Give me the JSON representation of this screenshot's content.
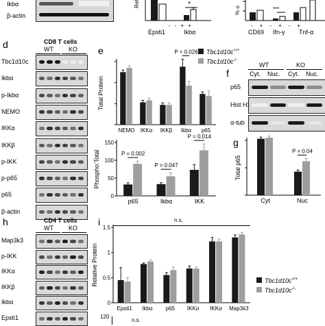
{
  "top": {
    "blot_labels": [
      "Ikbα",
      "β-actin"
    ],
    "ylabel_rel": "Rel",
    "xlabels_left": [
      "Epsti1",
      "Ikbα"
    ],
    "signs_left": [
      "-",
      "-",
      "+",
      "+"
    ],
    "star_left": "*",
    "ylabel_pct": "% o",
    "star_right": "***",
    "xlabels_right": [
      "CD69",
      "Ifn-γ",
      "Tnf-α"
    ],
    "signs_right": [
      "-",
      "+",
      "-",
      "+",
      "-",
      "+"
    ]
  },
  "panel_d": {
    "letter": "d",
    "title": "CD8 T cells",
    "wt": "WT",
    "ko": "KO",
    "rows": [
      "Tbc1d10c",
      "Ikbα",
      "p-Ikbα",
      "NEMO",
      "IKKα",
      "IKKβ",
      "p-IKK",
      "p-p65",
      "p65",
      "β-actin"
    ]
  },
  "panel_e": {
    "letter": "e",
    "legend": [
      "Tbc1d10c+/+",
      "Tbc1d10c-/-"
    ],
    "legend_gene": "Tbc1d10c",
    "legend_sup": [
      "+/+",
      "-/-"
    ],
    "colors": {
      "wt": "#1a1a1a",
      "ko": "#9e9e9e"
    }
  },
  "panel_f": {
    "letter": "f",
    "wt": "WT",
    "ko": "KO",
    "cols": [
      "Cyt.",
      "Nuc.",
      "Cyt.",
      "Nuc."
    ],
    "rows": [
      "p65",
      "Hist H3",
      "α-tub"
    ]
  },
  "panel_g": {
    "letter": "g"
  },
  "panel_h": {
    "letter": "h",
    "title": "CD4 T cells",
    "wt": "WT",
    "ko": "KO",
    "rows": [
      "Map3k3",
      "p-IKK",
      "IKKα",
      "IKKβ",
      "Ikbα",
      "Epsti1"
    ]
  },
  "panel_i": {
    "letter": "i",
    "ns": "n.s.",
    "legend_gene": "Tbc1d10c",
    "legend_sup": [
      "+/+",
      "-/-"
    ],
    "bottom_ns": "n.s.",
    "bottom_tick": "120"
  },
  "chart_data": [
    {
      "type": "bar",
      "ylabel": "Total Protein",
      "categories": [
        "NEMO",
        "IKKα",
        "IKKβ",
        "Ikbα",
        "p65"
      ],
      "series": [
        {
          "name": "Tbc1d10c+/+",
          "values": [
            1.25,
            0.53,
            0.47,
            1.38,
            0.73
          ]
        },
        {
          "name": "Tbc1d10c-/-",
          "values": [
            1.35,
            0.58,
            0.47,
            0.93,
            0.68
          ]
        }
      ],
      "errors": [
        [
          0.05,
          0.05,
          0.05,
          0.18,
          0.05
        ],
        [
          0.05,
          0.05,
          0.05,
          0.1,
          0.12
        ]
      ],
      "ylim": [
        0,
        1.5
      ],
      "yticks": [
        0,
        0.5,
        1.0,
        1.5
      ],
      "annotations": [
        {
          "text": "P = 0.026",
          "category": "Ikbα"
        }
      ]
    },
    {
      "type": "bar",
      "ylabel": "Phospho:Total",
      "categories": [
        "p65",
        "Ikbα",
        "IKK"
      ],
      "series": [
        {
          "name": "Tbc1d10c+/+",
          "values": [
            32,
            33,
            73
          ]
        },
        {
          "name": "Tbc1d10c-/-",
          "values": [
            90,
            55,
            128
          ]
        }
      ],
      "errors": [
        [
          5,
          4,
          15
        ],
        [
          8,
          10,
          18
        ]
      ],
      "ylim": [
        0,
        150
      ],
      "yticks": [
        0,
        50,
        100,
        150
      ],
      "annotations": [
        {
          "text": "P = 0.002",
          "category": "p65"
        },
        {
          "text": "P = 0.047",
          "category": "Ikbα"
        },
        {
          "text": "P = 0.014",
          "category": "IKK"
        }
      ]
    },
    {
      "type": "bar",
      "ylabel": "Total p65",
      "categories": [
        "Cyt",
        "Nuc"
      ],
      "series": [
        {
          "name": "Tbc1d10c+/+",
          "values": [
            1.03,
            0.43
          ]
        },
        {
          "name": "Tbc1d10c-/-",
          "values": [
            1.05,
            0.62
          ]
        }
      ],
      "errors": [
        [
          0.03,
          0.03
        ],
        [
          0.03,
          0.05
        ]
      ],
      "ylim": [
        0,
        1.0
      ],
      "yticks": [
        0,
        0.5,
        1.0
      ],
      "annotations": [
        {
          "text": "P = 0.04",
          "category": "Nuc"
        }
      ]
    },
    {
      "type": "bar",
      "ylabel": "Relative Protein",
      "categories": [
        "Epsti1",
        "Ikbα",
        "p65",
        "IKKα",
        "IKKα",
        "Map3k3"
      ],
      "series": [
        {
          "name": "Tbc1d10c+/+",
          "values": [
            0.45,
            0.77,
            0.55,
            0.68,
            1.22,
            1.3
          ]
        },
        {
          "name": "Tbc1d10c-/-",
          "values": [
            0.42,
            0.82,
            0.65,
            0.68,
            1.22,
            1.36
          ]
        }
      ],
      "errors": [
        [
          0.25,
          0.02,
          0.05,
          0.05,
          0.08,
          0.05
        ],
        [
          0.08,
          0.03,
          0.06,
          0.03,
          0.05,
          0.04
        ]
      ],
      "ylim": [
        0,
        1.5
      ],
      "yticks": [
        0,
        0.5,
        1.0,
        1.5
      ],
      "annotations": [
        {
          "text": "n.s.",
          "category": "all"
        }
      ]
    }
  ]
}
